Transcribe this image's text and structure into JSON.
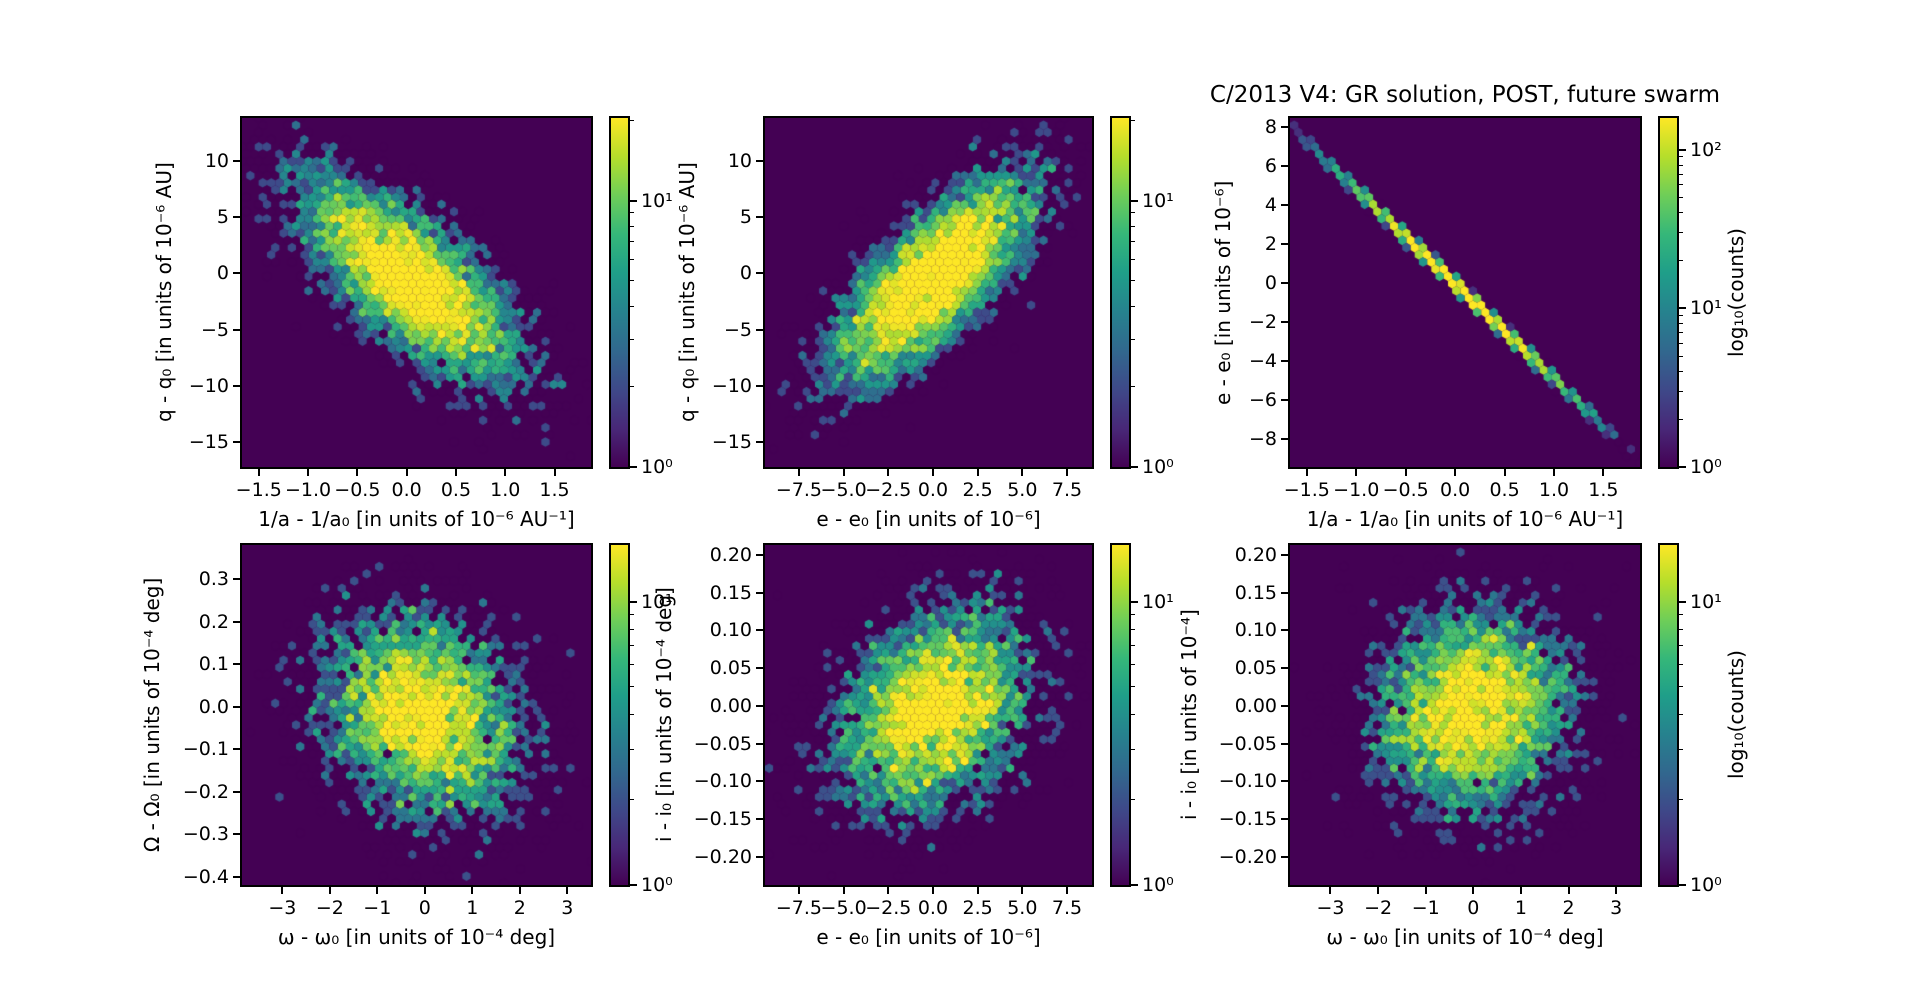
{
  "figure": {
    "title": "C/2013 V4: GR solution, POST, future swarm",
    "background_color": "#ffffff",
    "text_color": "#000000",
    "colormap": "viridis",
    "colormap_stops": [
      "#440154",
      "#482878",
      "#3e4989",
      "#31688e",
      "#26828e",
      "#1f9e89",
      "#35b779",
      "#6ece58",
      "#b5de2b",
      "#fde725"
    ]
  },
  "chart_data": [
    {
      "id": "q-vs-1a",
      "type": "hexbin",
      "xlabel": "1/a - 1/a₀ [in units of 10⁻⁶ AU⁻¹]",
      "ylabel": "q - q₀ [in units of 10⁻⁶ AU]",
      "xlim": [
        -1.67,
        1.87
      ],
      "ylim": [
        -17.2,
        13.8
      ],
      "xticks": {
        "values": [
          -1.5,
          -1.0,
          -0.5,
          0.0,
          0.5,
          1.0,
          1.5
        ],
        "labels": [
          "−1.5",
          "−1.0",
          "−0.5",
          "0.0",
          "0.5",
          "1.0",
          "1.5"
        ]
      },
      "yticks": {
        "values": [
          10,
          5,
          0,
          -5,
          -10,
          -15
        ],
        "labels": [
          "10",
          "5",
          "0",
          "−5",
          "−10",
          "−15"
        ]
      },
      "colorbar": {
        "vmax_log10": 1.31,
        "ticks": [
          {
            "log10": 1,
            "label": "10¹"
          },
          {
            "log10": 0,
            "label": "10⁰"
          }
        ],
        "label": ""
      },
      "distribution": {
        "kind": "gaussian-2d",
        "n_samples": 6000,
        "seed": 101,
        "center": [
          0.03,
          -0.5
        ],
        "sigma": [
          0.56,
          4.6
        ],
        "rho": -0.72
      }
    },
    {
      "id": "q-vs-e",
      "type": "hexbin",
      "xlabel": "e - e₀ [in units of 10⁻⁶]",
      "ylabel": "q - q₀ [in units of 10⁻⁶ AU]",
      "xlim": [
        -9.4,
        8.9
      ],
      "ylim": [
        -17.2,
        13.8
      ],
      "xticks": {
        "values": [
          -7.5,
          -5.0,
          -2.5,
          0.0,
          2.5,
          5.0,
          7.5
        ],
        "labels": [
          "−7.5",
          "−5.0",
          "−2.5",
          "0.0",
          "2.5",
          "5.0",
          "7.5"
        ]
      },
      "yticks": {
        "values": [
          10,
          5,
          0,
          -5,
          -10,
          -15
        ],
        "labels": [
          "10",
          "5",
          "0",
          "−5",
          "−10",
          "−15"
        ]
      },
      "colorbar": {
        "vmax_log10": 1.31,
        "ticks": [
          {
            "log10": 1,
            "label": "10¹"
          },
          {
            "log10": 0,
            "label": "10⁰"
          }
        ],
        "label": ""
      },
      "distribution": {
        "kind": "gaussian-2d",
        "n_samples": 6000,
        "seed": 202,
        "center": [
          0.0,
          -0.5
        ],
        "sigma": [
          2.8,
          4.6
        ],
        "rho": 0.74
      }
    },
    {
      "id": "e-vs-1a",
      "type": "hexbin",
      "xlabel": "1/a - 1/a₀ [in units of 10⁻⁶ AU⁻¹]",
      "ylabel": "e - e₀ [in units of 10⁻⁶]",
      "xlim": [
        -1.67,
        1.87
      ],
      "ylim": [
        -9.45,
        8.45
      ],
      "xticks": {
        "values": [
          -1.5,
          -1.0,
          -0.5,
          0.0,
          0.5,
          1.0,
          1.5
        ],
        "labels": [
          "−1.5",
          "−1.0",
          "−0.5",
          "0.0",
          "0.5",
          "1.0",
          "1.5"
        ]
      },
      "yticks": {
        "values": [
          8,
          6,
          4,
          2,
          0,
          -2,
          -4,
          -6,
          -8
        ],
        "labels": [
          "8",
          "6",
          "4",
          "2",
          "0",
          "−2",
          "−4",
          "−6",
          "−8"
        ]
      },
      "colorbar": {
        "vmax_log10": 2.2,
        "ticks": [
          {
            "log10": 2,
            "label": "10²"
          },
          {
            "log10": 1,
            "label": "10¹"
          },
          {
            "log10": 0,
            "label": "10⁰"
          }
        ],
        "label": "log₁₀(counts)"
      },
      "distribution": {
        "kind": "gaussian-2d",
        "n_samples": 6000,
        "seed": 303,
        "center": [
          0.05,
          -0.3
        ],
        "sigma": [
          0.56,
          2.72
        ],
        "rho": -0.9994
      }
    },
    {
      "id": "Omega-vs-omega",
      "type": "hexbin",
      "xlabel": "ω - ω₀ [in units of 10⁻⁴ deg]",
      "ylabel": "Ω - Ω₀ [in units of 10⁻⁴ deg]",
      "xlim": [
        -3.85,
        3.5
      ],
      "ylim": [
        -0.42,
        0.38
      ],
      "xticks": {
        "values": [
          -3,
          -2,
          -1,
          0,
          1,
          2,
          3
        ],
        "labels": [
          "−3",
          "−2",
          "−1",
          "0",
          "1",
          "2",
          "3"
        ]
      },
      "yticks": {
        "values": [
          0.3,
          0.2,
          0.1,
          0.0,
          -0.1,
          -0.2,
          -0.3,
          -0.4
        ],
        "labels": [
          "0.3",
          "0.2",
          "0.1",
          "0.0",
          "−0.1",
          "−0.2",
          "−0.3",
          "−0.4"
        ]
      },
      "colorbar": {
        "vmax_log10": 1.2,
        "ticks": [
          {
            "log10": 1,
            "label": "10¹"
          },
          {
            "log10": 0,
            "label": "10⁰"
          }
        ],
        "label": ""
      },
      "distribution": {
        "kind": "gaussian-2d",
        "n_samples": 5000,
        "seed": 404,
        "center": [
          -0.05,
          -0.02
        ],
        "sigma": [
          1.1,
          0.125
        ],
        "rho": -0.22
      }
    },
    {
      "id": "i-vs-e",
      "type": "hexbin",
      "xlabel": "e - e₀ [in units of 10⁻⁶]",
      "ylabel": "i - i₀ [in units of 10⁻⁴ deg]",
      "xlim": [
        -9.4,
        8.9
      ],
      "ylim": [
        -0.237,
        0.213
      ],
      "xticks": {
        "values": [
          -7.5,
          -5.0,
          -2.5,
          0.0,
          2.5,
          5.0,
          7.5
        ],
        "labels": [
          "−7.5",
          "−5.0",
          "−2.5",
          "0.0",
          "2.5",
          "5.0",
          "7.5"
        ]
      },
      "yticks": {
        "values": [
          0.2,
          0.15,
          0.1,
          0.05,
          0.0,
          -0.05,
          -0.1,
          -0.15,
          -0.2
        ],
        "labels": [
          "0.20",
          "0.15",
          "0.10",
          "0.05",
          "0.00",
          "−0.05",
          "−0.10",
          "−0.15",
          "−0.20"
        ]
      },
      "colorbar": {
        "vmax_log10": 1.2,
        "ticks": [
          {
            "log10": 1,
            "label": "10¹"
          },
          {
            "log10": 0,
            "label": "10⁰"
          }
        ],
        "label": ""
      },
      "distribution": {
        "kind": "gaussian-2d",
        "n_samples": 5000,
        "seed": 505,
        "center": [
          0.0,
          -0.005
        ],
        "sigma": [
          2.75,
          0.068
        ],
        "rho": 0.28
      }
    },
    {
      "id": "i-vs-omega",
      "type": "hexbin",
      "xlabel": "ω - ω₀ [in units of 10⁻⁴ deg]",
      "ylabel": "i - i₀ [in units of 10⁻⁴]",
      "xlim": [
        -3.85,
        3.5
      ],
      "ylim": [
        -0.237,
        0.213
      ],
      "xticks": {
        "values": [
          -3,
          -2,
          -1,
          0,
          1,
          2,
          3
        ],
        "labels": [
          "−3",
          "−2",
          "−1",
          "0",
          "1",
          "2",
          "3"
        ]
      },
      "yticks": {
        "values": [
          0.2,
          0.15,
          0.1,
          0.05,
          0.0,
          -0.05,
          -0.1,
          -0.15,
          -0.2
        ],
        "labels": [
          "0.20",
          "0.15",
          "0.10",
          "0.05",
          "0.00",
          "−0.05",
          "−0.10",
          "−0.15",
          "−0.20"
        ]
      },
      "colorbar": {
        "vmax_log10": 1.2,
        "ticks": [
          {
            "log10": 1,
            "label": "10¹"
          },
          {
            "log10": 0,
            "label": "10⁰"
          }
        ],
        "label": "log₁₀(counts)"
      },
      "distribution": {
        "kind": "gaussian-2d",
        "n_samples": 5000,
        "seed": 606,
        "center": [
          0.0,
          -0.005
        ],
        "sigma": [
          1.05,
          0.068
        ],
        "rho": 0.08
      }
    }
  ]
}
